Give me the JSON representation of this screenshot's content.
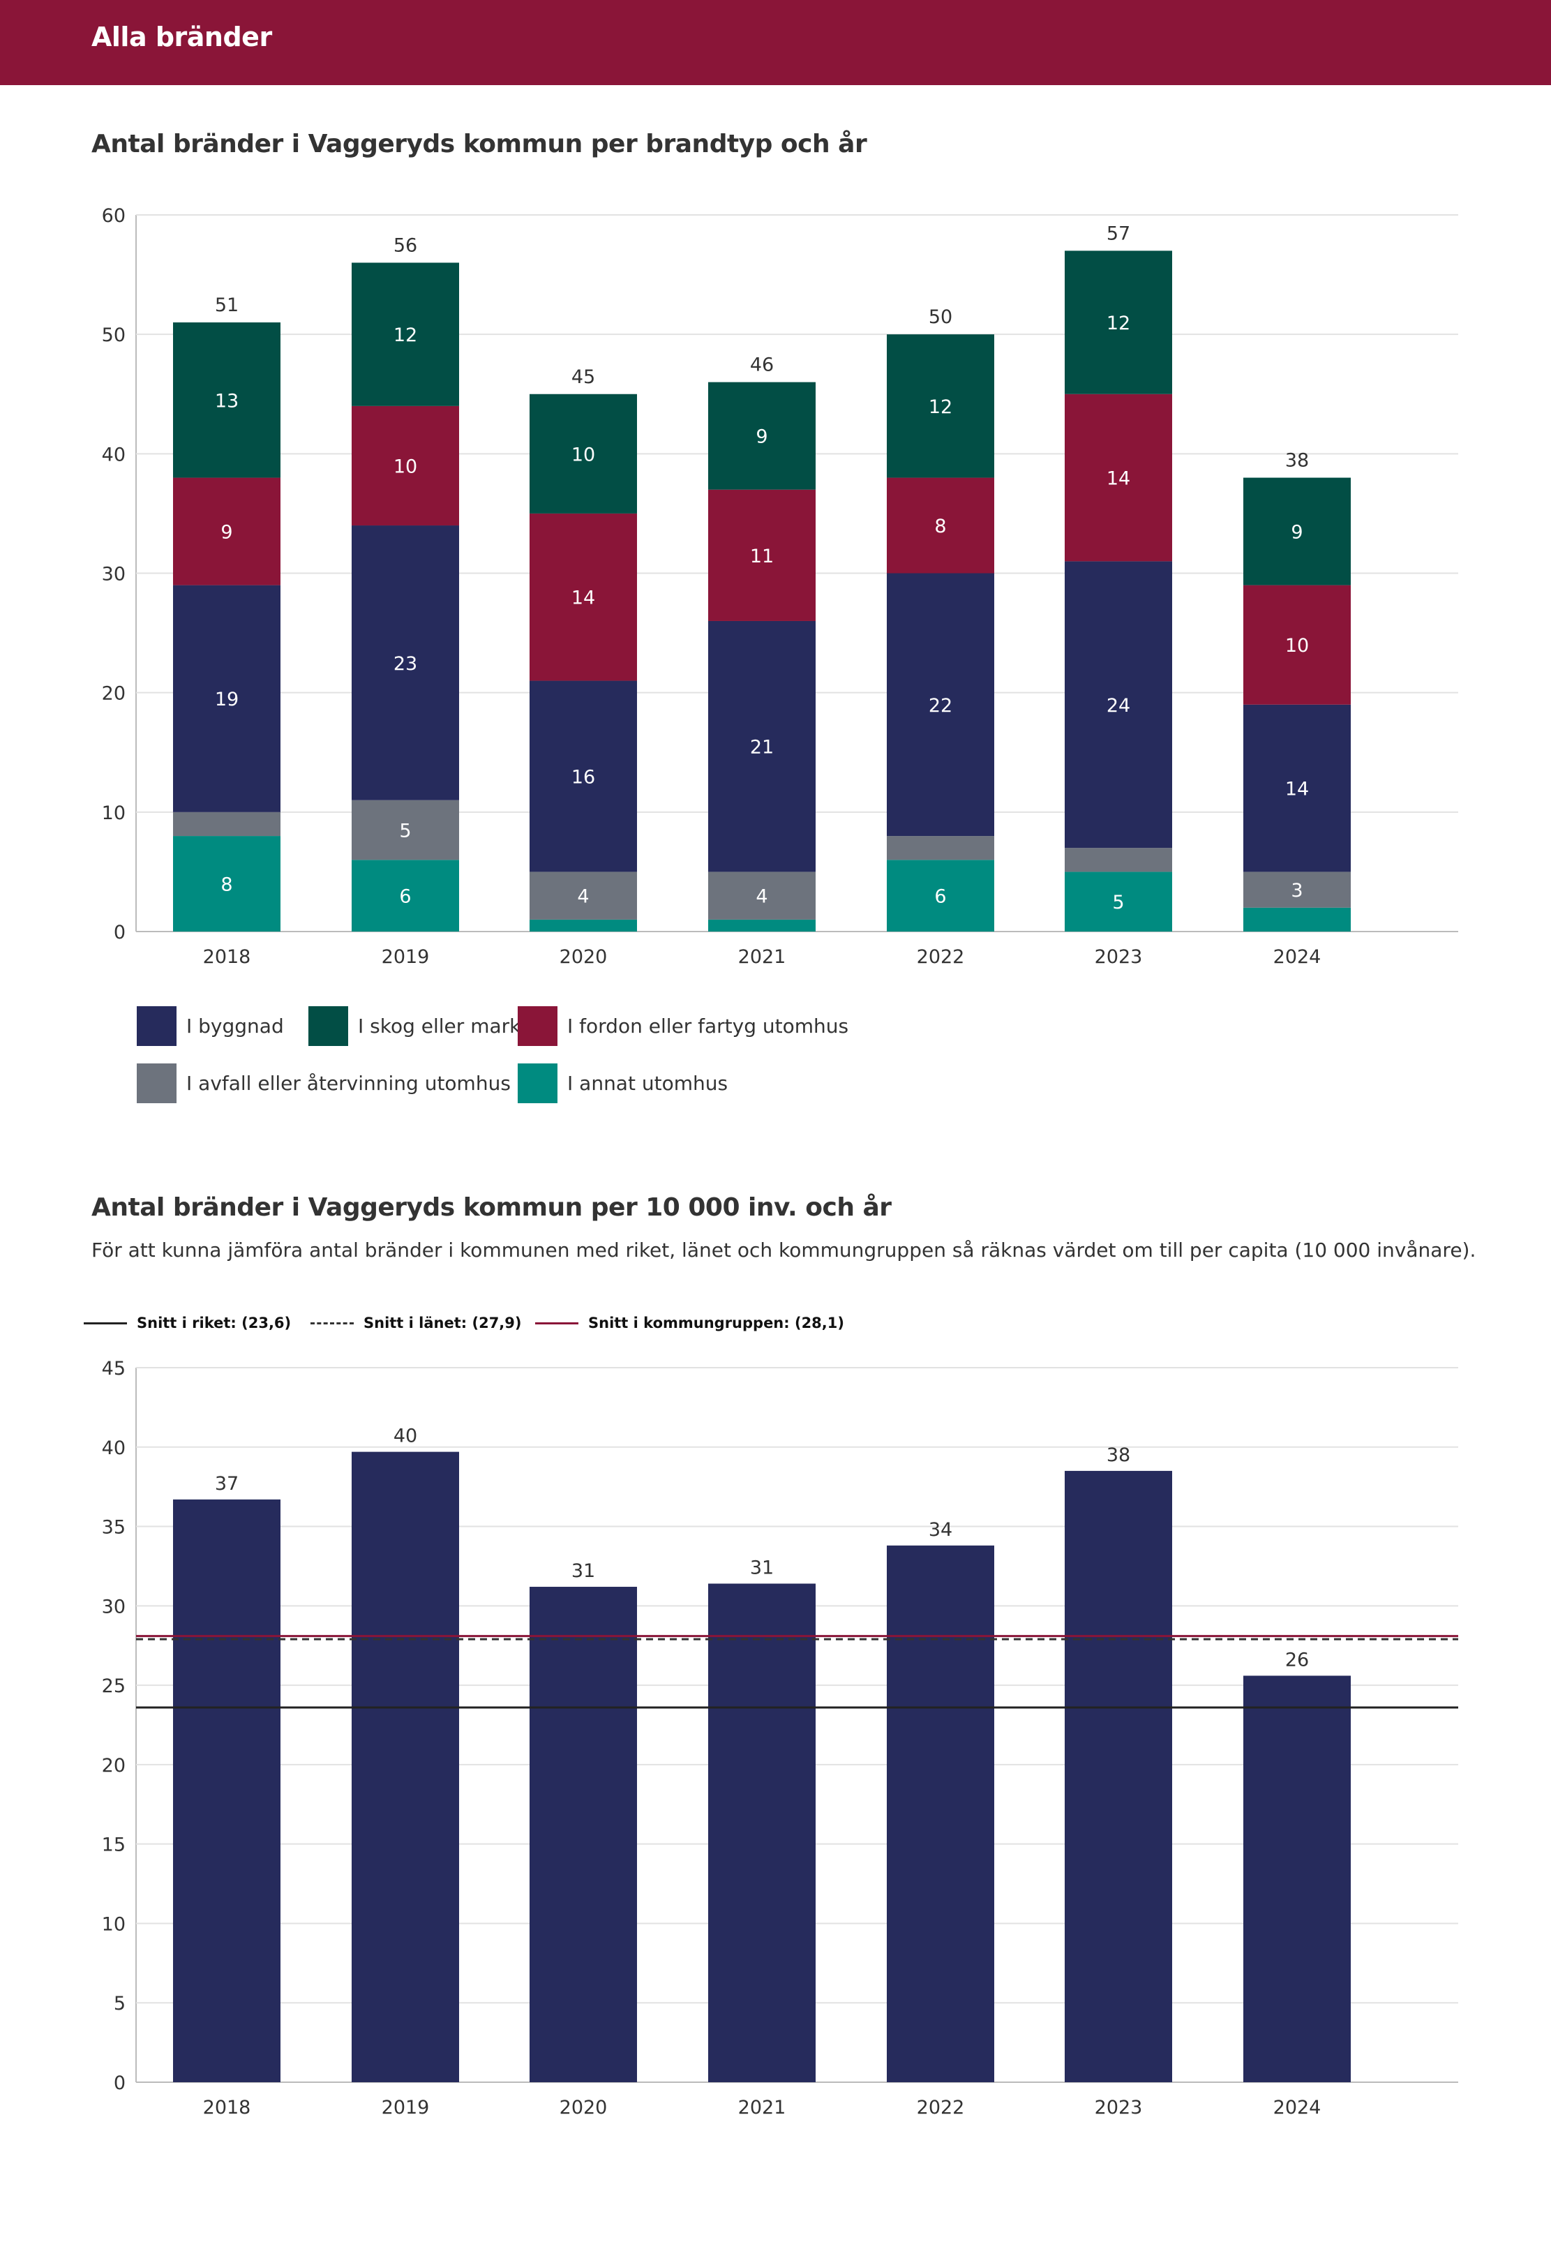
{
  "header": {
    "title": "Alla bränder"
  },
  "chart1": {
    "title": "Antal bränder i Vaggeryds kommun per brandtyp och år",
    "legend": [
      {
        "label": "I byggnad",
        "color": "#262b5c"
      },
      {
        "label": "I skog eller mark",
        "color": "#024e45"
      },
      {
        "label": "I fordon eller fartyg utomhus",
        "color": "#8a1538"
      },
      {
        "label": "I avfall eller återvinning utomhus",
        "color": "#6d737d"
      },
      {
        "label": "I annat utomhus",
        "color": "#008b80"
      }
    ]
  },
  "chart2": {
    "title": "Antal bränder i Vaggeryds kommun per 10 000 inv. och år",
    "description": "För att kunna jämföra antal bränder i kommunen med riket, länet och kommungruppen så räknas värdet om till per capita (10 000 invånare).",
    "reference_lines": [
      {
        "label": "Snitt i riket: (23,6)",
        "value": 23.6,
        "color": "#222222",
        "style": "solid"
      },
      {
        "label": "Snitt i länet: (27,9)",
        "value": 27.9,
        "color": "#333333",
        "style": "dashed"
      },
      {
        "label": "Snitt i kommungruppen: (28,1)",
        "value": 28.1,
        "color": "#8a1538",
        "style": "solid"
      }
    ]
  },
  "chart_data": [
    {
      "type": "bar",
      "stacked": true,
      "title": "Antal bränder i Vaggeryds kommun per brandtyp och år",
      "categories": [
        "2018",
        "2019",
        "2020",
        "2021",
        "2022",
        "2023",
        "2024"
      ],
      "ylim": [
        0,
        60
      ],
      "yticks": [
        0,
        10,
        20,
        30,
        40,
        50,
        60
      ],
      "series": [
        {
          "name": "I annat utomhus",
          "color": "#008b80",
          "values": [
            8,
            6,
            1,
            1,
            6,
            5,
            2
          ],
          "labels": [
            "8",
            "6",
            "",
            "",
            "6",
            "5",
            ""
          ]
        },
        {
          "name": "I avfall eller återvinning utomhus",
          "color": "#6d737d",
          "values": [
            2,
            5,
            4,
            4,
            2,
            2,
            3
          ],
          "labels": [
            "",
            "5",
            "4",
            "4",
            "",
            "",
            "3"
          ]
        },
        {
          "name": "I byggnad",
          "color": "#262b5c",
          "values": [
            19,
            23,
            16,
            21,
            22,
            24,
            14
          ],
          "labels": [
            "19",
            "23",
            "16",
            "21",
            "22",
            "24",
            "14"
          ]
        },
        {
          "name": "I fordon eller fartyg utomhus",
          "color": "#8a1538",
          "values": [
            9,
            10,
            14,
            11,
            8,
            14,
            10
          ],
          "labels": [
            "9",
            "10",
            "14",
            "11",
            "8",
            "14",
            "10"
          ]
        },
        {
          "name": "I skog eller mark",
          "color": "#024e45",
          "values": [
            13,
            12,
            10,
            9,
            12,
            12,
            9
          ],
          "labels": [
            "13",
            "12",
            "10",
            "9",
            "12",
            "12",
            "9"
          ]
        }
      ],
      "totals": [
        "51",
        "56",
        "45",
        "46",
        "50",
        "57",
        "38"
      ]
    },
    {
      "type": "bar",
      "title": "Antal bränder i Vaggeryds kommun per 10 000 inv. och år",
      "categories": [
        "2018",
        "2019",
        "2020",
        "2021",
        "2022",
        "2023",
        "2024"
      ],
      "values": [
        36.7,
        39.7,
        31.2,
        31.4,
        33.8,
        38.5,
        25.6
      ],
      "value_labels": [
        "37",
        "40",
        "31",
        "31",
        "34",
        "38",
        "26"
      ],
      "color": "#262b5c",
      "ylim": [
        0,
        45
      ],
      "yticks": [
        0,
        5,
        10,
        15,
        20,
        25,
        30,
        35,
        40,
        45
      ]
    }
  ]
}
